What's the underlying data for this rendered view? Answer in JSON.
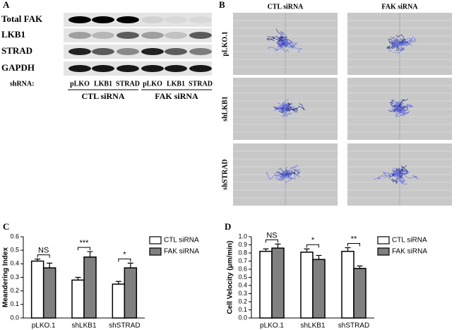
{
  "panels": {
    "a": {
      "letter": "A",
      "rows": [
        "Total FAK",
        "LKB1",
        "STRAD",
        "GAPDH"
      ],
      "shrna_label": "shRNA:",
      "lanes": [
        "pLKO",
        "LKB1",
        "STRAD",
        "pLKO",
        "LKB1",
        "STRAD"
      ],
      "groups": [
        "CTL siRNA",
        "FAK siRNA"
      ]
    },
    "b": {
      "letter": "B",
      "columns": [
        "CTL siRNA",
        "FAK siRNA"
      ],
      "rows": [
        "pLKO.1",
        "shLKB1",
        "shSTRAD"
      ]
    },
    "c": {
      "letter": "C"
    },
    "d": {
      "letter": "D"
    }
  },
  "chart_data": [
    {
      "type": "bar",
      "y_label": "Meandering Index",
      "categories": [
        "pLKO.1",
        "shLKB1",
        "shSTRAD"
      ],
      "series": [
        {
          "name": "CTL siRNA",
          "color": "#ffffff",
          "values": [
            0.42,
            0.28,
            0.25
          ],
          "errors": [
            0.015,
            0.02,
            0.02
          ]
        },
        {
          "name": "FAK siRNA",
          "color": "#808080",
          "values": [
            0.37,
            0.45,
            0.37
          ],
          "errors": [
            0.035,
            0.04,
            0.035
          ]
        }
      ],
      "annotations": [
        "NS",
        "***",
        "*"
      ],
      "ylim": [
        0,
        0.6
      ],
      "yticks": [
        {
          "value": 0,
          "label": "0.0"
        },
        0.1,
        0.2,
        0.3,
        0.4,
        0.5,
        0.6
      ]
    },
    {
      "type": "bar",
      "y_label": "Cell Velocity (μm/min)",
      "categories": [
        "pLKO.1",
        "shLKB1",
        "shSTRAD"
      ],
      "series": [
        {
          "name": "CTL siRNA",
          "color": "#ffffff",
          "values": [
            0.82,
            0.81,
            0.82
          ],
          "errors": [
            0.03,
            0.04,
            0.045
          ]
        },
        {
          "name": "FAK siRNA",
          "color": "#808080",
          "values": [
            0.86,
            0.72,
            0.61
          ],
          "errors": [
            0.05,
            0.05,
            0.03
          ]
        }
      ],
      "annotations": [
        "NS",
        "*",
        "**"
      ],
      "ylim": [
        0,
        1
      ],
      "yticks": [
        {
          "value": 0,
          "label": "0.0"
        },
        0.1,
        0.2,
        0.3,
        0.4,
        0.5,
        0.6,
        0.7,
        0.8,
        0.9,
        {
          "value": 1,
          "label": "1.0"
        }
      ]
    }
  ]
}
